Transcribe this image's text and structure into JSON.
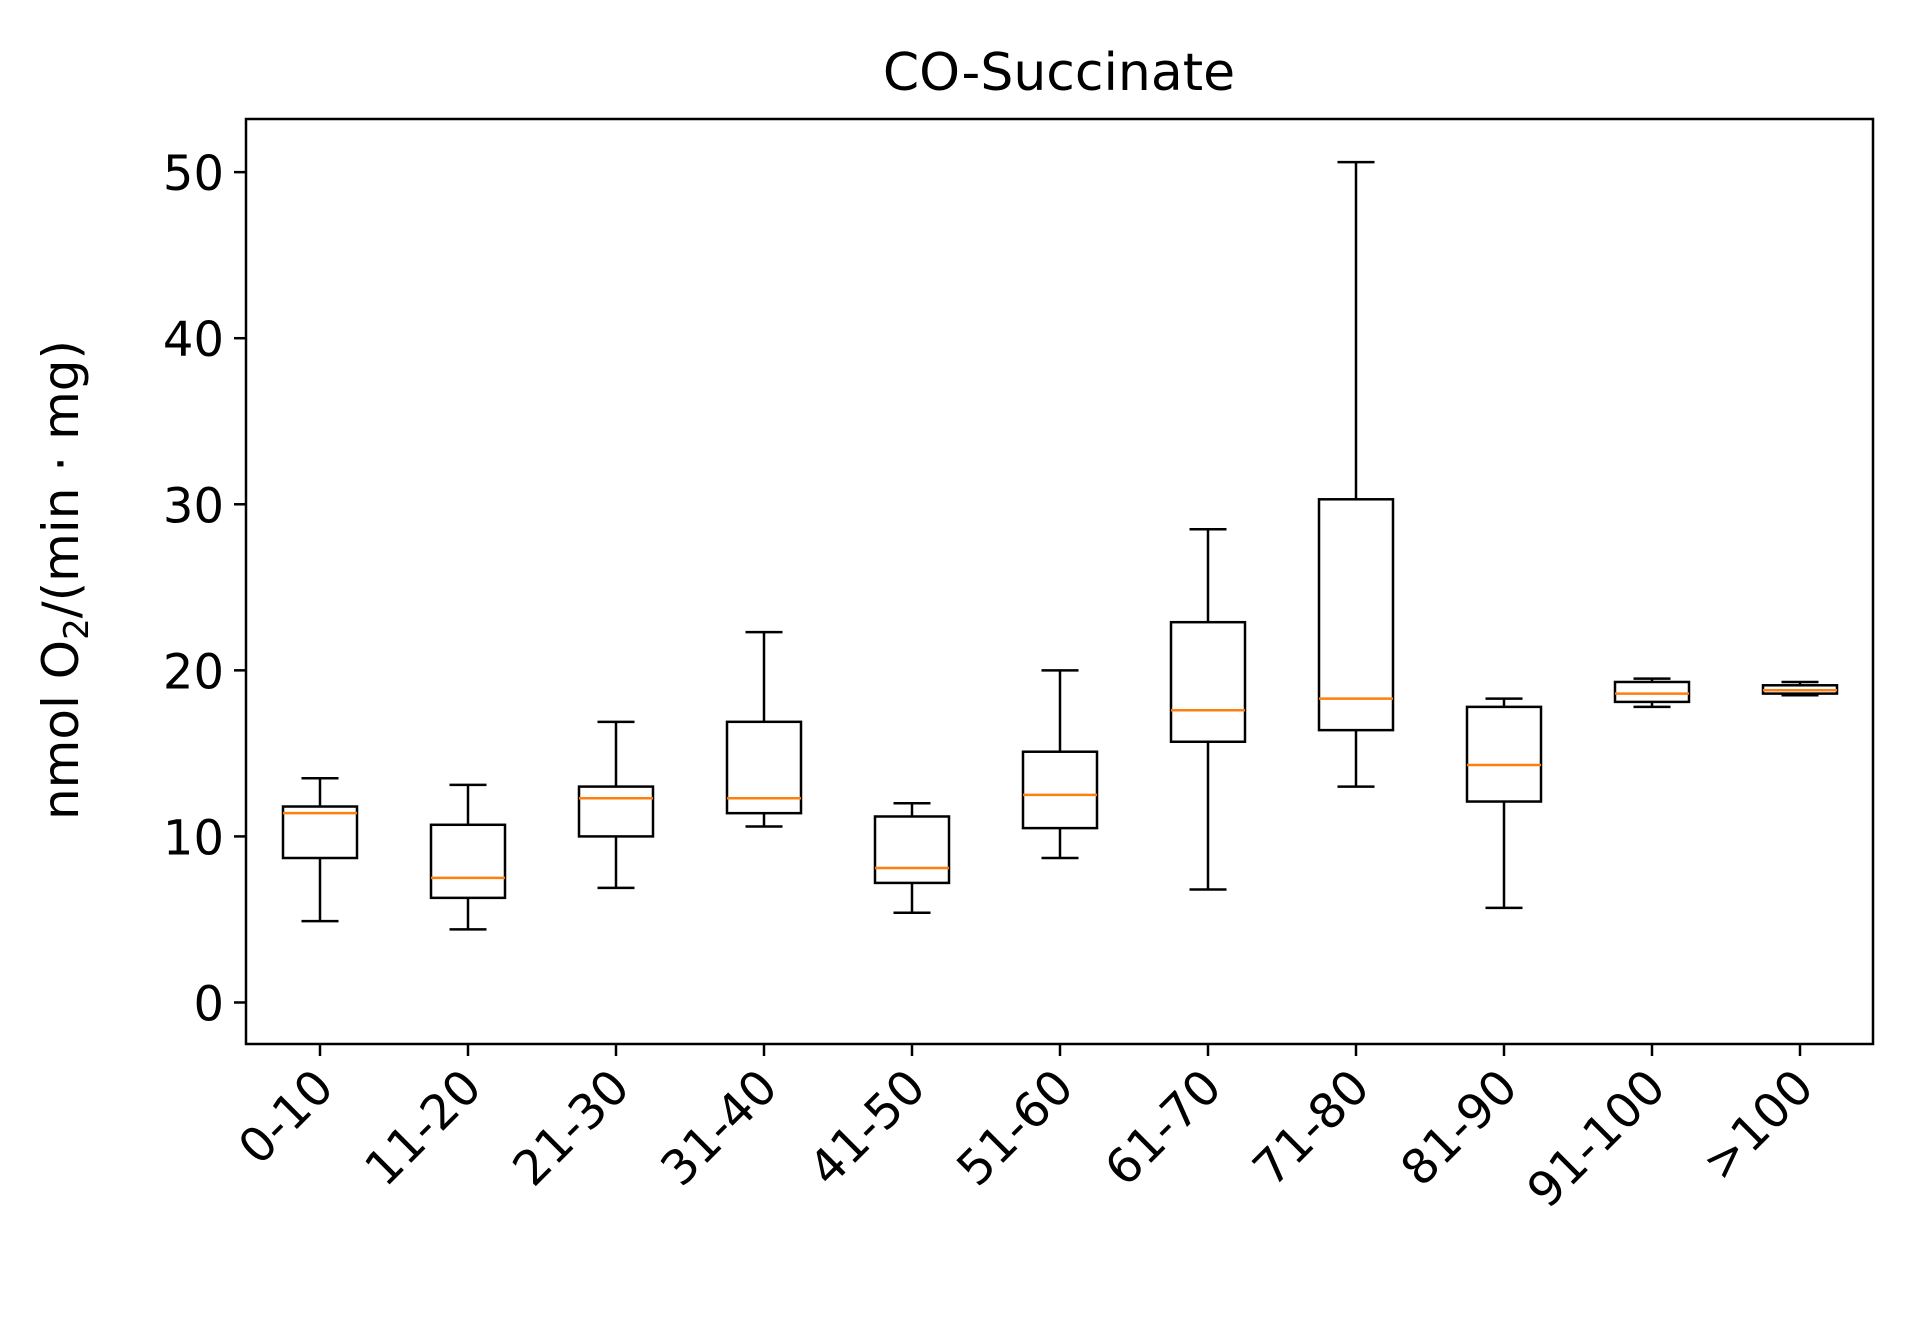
{
  "chart_data": {
    "type": "box",
    "title": "CO-Succinate",
    "xlabel": "",
    "ylabel": {
      "prefix": "nmol O",
      "subscript": "2",
      "suffix": "/(min · mg)"
    },
    "ylim": [
      -2.5,
      53.2
    ],
    "yticks": [
      0,
      10,
      20,
      30,
      40,
      50
    ],
    "ytick_labels": [
      "0",
      "10",
      "20",
      "30",
      "40",
      "50"
    ],
    "categories": [
      "0-10",
      "11-20",
      "21-30",
      "31-40",
      "41-50",
      "51-60",
      "61-70",
      "71-80",
      "81-90",
      "91-100",
      ">100"
    ],
    "boxes": [
      {
        "whisker_low": 4.9,
        "q1": 8.7,
        "median": 11.4,
        "q3": 11.8,
        "whisker_high": 13.5
      },
      {
        "whisker_low": 4.4,
        "q1": 6.3,
        "median": 7.5,
        "q3": 10.7,
        "whisker_high": 13.1
      },
      {
        "whisker_low": 6.9,
        "q1": 10.0,
        "median": 12.3,
        "q3": 13.0,
        "whisker_high": 16.9
      },
      {
        "whisker_low": 10.6,
        "q1": 11.4,
        "median": 12.3,
        "q3": 16.9,
        "whisker_high": 22.3
      },
      {
        "whisker_low": 5.4,
        "q1": 7.2,
        "median": 8.1,
        "q3": 11.2,
        "whisker_high": 12.0
      },
      {
        "whisker_low": 8.7,
        "q1": 10.5,
        "median": 12.5,
        "q3": 15.1,
        "whisker_high": 20.0
      },
      {
        "whisker_low": 6.8,
        "q1": 15.7,
        "median": 17.6,
        "q3": 22.9,
        "whisker_high": 28.5
      },
      {
        "whisker_low": 13.0,
        "q1": 16.4,
        "median": 18.3,
        "q3": 30.3,
        "whisker_high": 50.6
      },
      {
        "whisker_low": 5.7,
        "q1": 12.1,
        "median": 14.3,
        "q3": 17.8,
        "whisker_high": 18.3
      },
      {
        "whisker_low": 17.8,
        "q1": 18.1,
        "median": 18.6,
        "q3": 19.3,
        "whisker_high": 19.5
      },
      {
        "whisker_low": 18.5,
        "q1": 18.6,
        "median": 18.8,
        "q3": 19.1,
        "whisker_high": 19.3
      }
    ],
    "grid": false,
    "legend": "none",
    "colors": {
      "box": "#000000",
      "median": "#ff7f0e",
      "background": "#ffffff"
    }
  }
}
